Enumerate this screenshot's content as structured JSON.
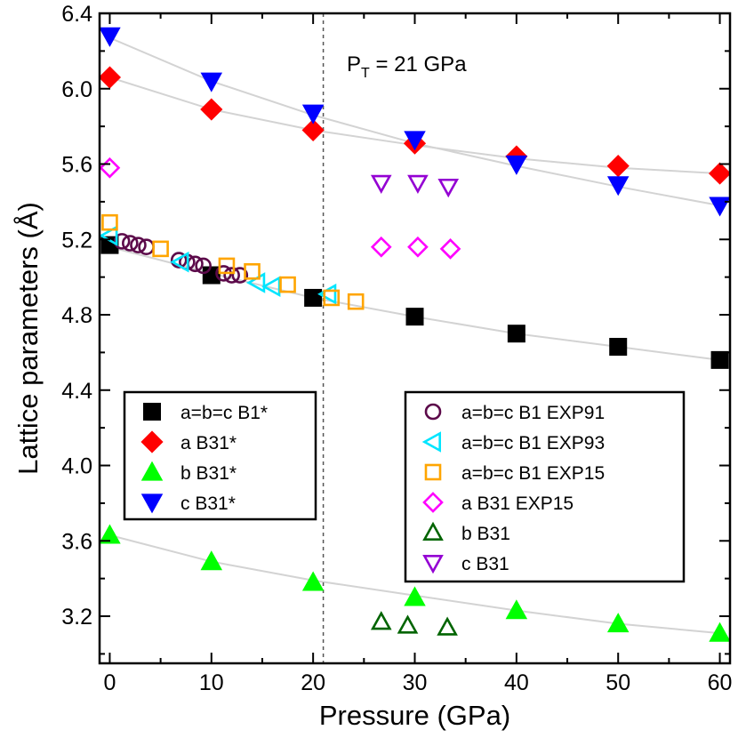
{
  "chart_data": {
    "type": "scatter",
    "xlabel": "Pressure (GPa)",
    "ylabel": "Lattice parameters (Å)",
    "xlim": [
      -1,
      61
    ],
    "ylim": [
      2.95,
      6.4
    ],
    "xticks": [
      0,
      10,
      20,
      30,
      40,
      50,
      60
    ],
    "yticks": [
      3.2,
      3.6,
      4.0,
      4.4,
      4.8,
      5.2,
      5.6,
      6.0,
      6.4
    ],
    "annotation": {
      "text_main": "P",
      "text_sub": "T",
      "text_rest": " = 21 GPa",
      "x": 21
    },
    "fit_lines": [
      {
        "name": "fit-a-b1",
        "x": [
          0,
          10,
          20,
          30,
          40,
          50,
          60
        ],
        "y": [
          5.16,
          5.02,
          4.89,
          4.79,
          4.7,
          4.63,
          4.56
        ]
      },
      {
        "name": "fit-a-b31",
        "x": [
          0,
          10,
          20,
          30,
          40,
          50,
          60
        ],
        "y": [
          6.06,
          5.89,
          5.78,
          5.7,
          5.63,
          5.58,
          5.55
        ]
      },
      {
        "name": "fit-c-b31",
        "x": [
          0,
          10,
          20,
          30,
          40,
          50,
          60
        ],
        "y": [
          6.27,
          6.04,
          5.86,
          5.71,
          5.59,
          5.48,
          5.38
        ]
      },
      {
        "name": "fit-b-b31",
        "x": [
          0,
          10,
          20,
          30,
          40,
          50,
          60
        ],
        "y": [
          3.63,
          3.49,
          3.39,
          3.31,
          3.23,
          3.16,
          3.11
        ]
      }
    ],
    "series": [
      {
        "name": "a=b=c B1*",
        "marker": "square",
        "filled": true,
        "color": "#000000",
        "x": [
          0,
          10,
          20,
          30,
          40,
          50,
          60
        ],
        "y": [
          5.17,
          5.01,
          4.89,
          4.79,
          4.7,
          4.63,
          4.56
        ]
      },
      {
        "name": "a B31*",
        "marker": "diamond",
        "filled": true,
        "color": "#ff0000",
        "x": [
          0,
          10,
          20,
          30,
          40,
          50,
          60
        ],
        "y": [
          6.06,
          5.89,
          5.78,
          5.71,
          5.64,
          5.59,
          5.55
        ]
      },
      {
        "name": "b B31*",
        "marker": "triangle-up",
        "filled": true,
        "color": "#00ff00",
        "x": [
          0,
          10,
          20,
          30,
          40,
          50,
          60
        ],
        "y": [
          3.63,
          3.49,
          3.38,
          3.3,
          3.23,
          3.16,
          3.11
        ]
      },
      {
        "name": "c B31*",
        "marker": "triangle-down",
        "filled": true,
        "color": "#0000ff",
        "x": [
          0,
          10,
          20,
          30,
          40,
          50,
          60
        ],
        "y": [
          6.28,
          6.04,
          5.87,
          5.73,
          5.6,
          5.49,
          5.38
        ]
      },
      {
        "name": "a=b=c B1 EXP91",
        "marker": "circle",
        "filled": false,
        "color": "#5c0a4a",
        "x": [
          1.2,
          2.0,
          2.8,
          3.6,
          6.8,
          7.6,
          8.4,
          9.2,
          11.2,
          12.0,
          12.8
        ],
        "y": [
          5.19,
          5.18,
          5.17,
          5.16,
          5.09,
          5.08,
          5.07,
          5.06,
          5.02,
          5.01,
          5.01
        ]
      },
      {
        "name": "a=b=c B1 EXP93",
        "marker": "triangle-left",
        "filled": false,
        "color": "#00e5ff",
        "x": [
          0,
          7.0,
          14.5,
          16.0,
          21.5
        ],
        "y": [
          5.22,
          5.08,
          4.97,
          4.95,
          4.91
        ]
      },
      {
        "name": "a=b=c B1 EXP15",
        "marker": "square",
        "filled": false,
        "color": "#ffa500",
        "x": [
          0,
          5.0,
          11.5,
          14.0,
          17.5,
          21.8,
          24.2
        ],
        "y": [
          5.29,
          5.15,
          5.06,
          5.03,
          4.96,
          4.89,
          4.87
        ]
      },
      {
        "name": "a B31 EXP15",
        "marker": "diamond",
        "filled": false,
        "color": "#ff00ff",
        "x": [
          0,
          26.7,
          30.3,
          33.5
        ],
        "y": [
          5.58,
          5.16,
          5.16,
          5.15
        ]
      },
      {
        "name": "b B31",
        "marker": "triangle-up",
        "filled": false,
        "color": "#006400",
        "x": [
          26.7,
          29.3,
          33.2
        ],
        "y": [
          3.17,
          3.15,
          3.14
        ]
      },
      {
        "name": "c B31",
        "marker": "triangle-down",
        "filled": false,
        "color": "#9400d3",
        "x": [
          26.7,
          30.3,
          33.3
        ],
        "y": [
          5.5,
          5.5,
          5.48
        ]
      }
    ],
    "legend_left": [
      "a=b=c B1*",
      "a B31*",
      "b B31*",
      "c B31*"
    ],
    "legend_right": [
      "a=b=c B1 EXP91",
      "a=b=c B1 EXP93",
      "a=b=c B1 EXP15",
      "a B31 EXP15",
      "b B31",
      "c B31"
    ],
    "legend_placement": "bottom-left and center-right"
  }
}
